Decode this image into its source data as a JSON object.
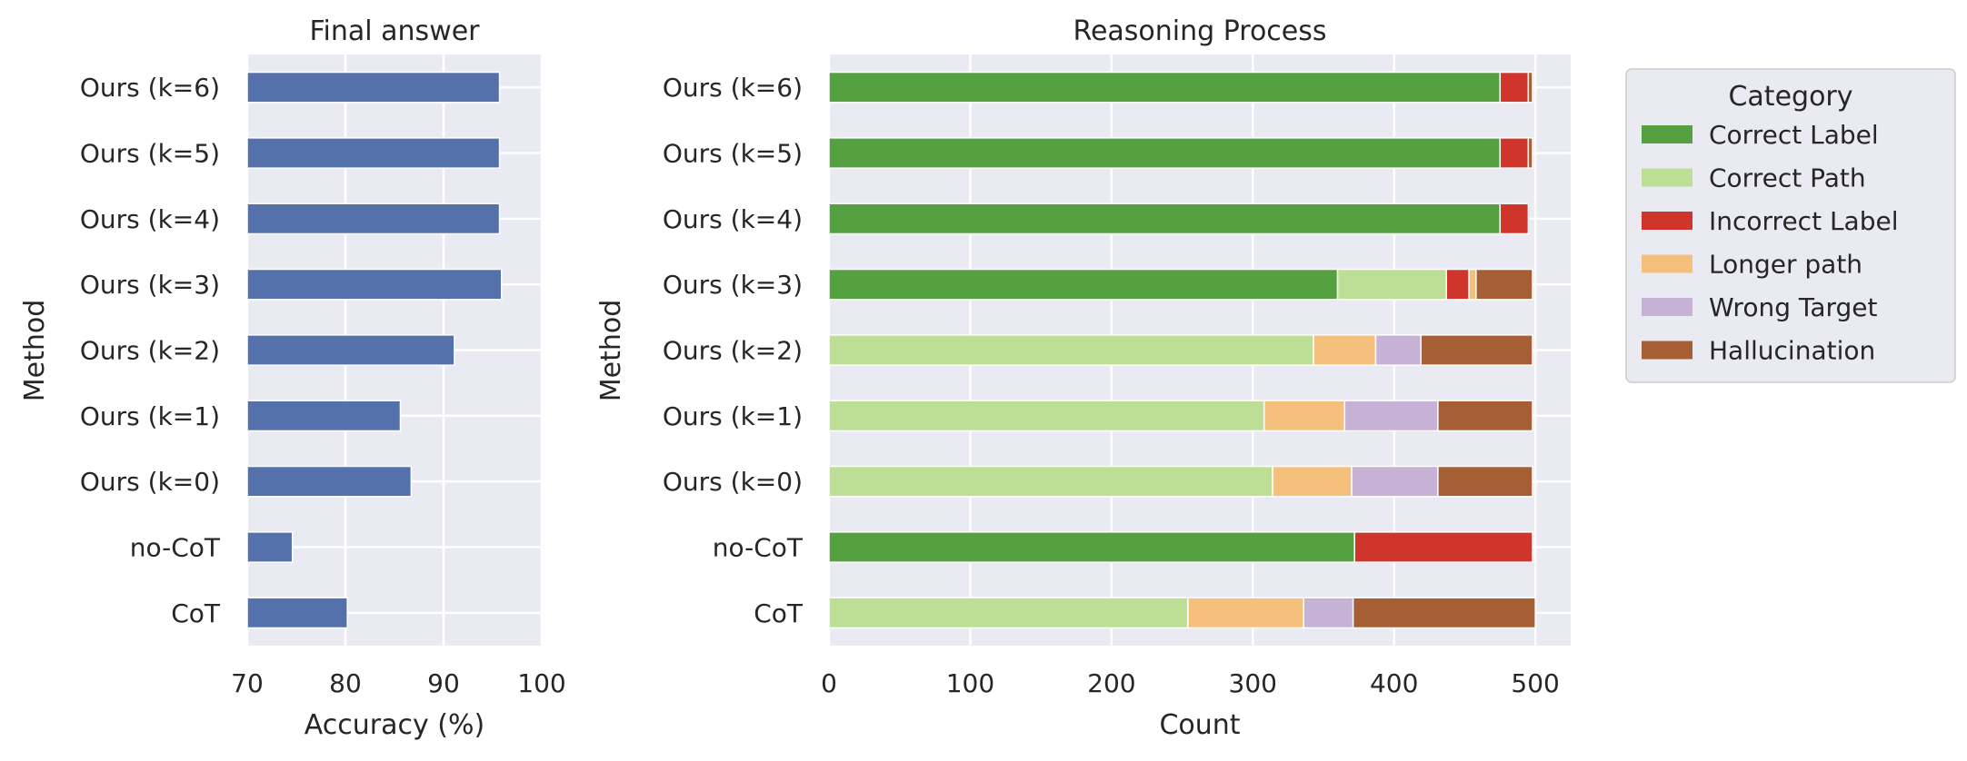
{
  "chart_data": [
    {
      "type": "bar",
      "orientation": "horizontal",
      "title": "Final answer",
      "xlabel": "Accuracy (%)",
      "ylabel": "Method",
      "xlim": [
        70,
        100
      ],
      "xticks": [
        70,
        80,
        90,
        100
      ],
      "grid": true,
      "categories": [
        "Ours (k=6)",
        "Ours (k=5)",
        "Ours (k=4)",
        "Ours (k=3)",
        "Ours (k=2)",
        "Ours (k=1)",
        "Ours (k=0)",
        "no-CoT",
        "CoT"
      ],
      "values": [
        95.7,
        95.7,
        95.7,
        95.9,
        91.1,
        85.6,
        86.7,
        74.6,
        80.2
      ],
      "color": "#5471ab"
    },
    {
      "type": "bar",
      "orientation": "horizontal",
      "stacked": true,
      "title": "Reasoning Process",
      "xlabel": "Count",
      "ylabel": "Method",
      "xlim": [
        0,
        525
      ],
      "xticks": [
        0,
        100,
        200,
        300,
        400,
        500
      ],
      "grid": true,
      "legend": {
        "title": "Category",
        "placement": "outside-right"
      },
      "categories": [
        "Ours (k=6)",
        "Ours (k=5)",
        "Ours (k=4)",
        "Ours (k=3)",
        "Ours (k=2)",
        "Ours (k=1)",
        "Ours (k=0)",
        "no-CoT",
        "CoT"
      ],
      "series": [
        {
          "name": "Correct Label",
          "color": "#55a040",
          "values": [
            475,
            475,
            475,
            360,
            0,
            0,
            0,
            372,
            0
          ]
        },
        {
          "name": "Correct Path",
          "color": "#bddf95",
          "values": [
            0,
            0,
            0,
            77,
            343,
            308,
            314,
            0,
            254
          ]
        },
        {
          "name": "Incorrect Label",
          "color": "#d0352b",
          "values": [
            20,
            20,
            20,
            16,
            0,
            0,
            0,
            126,
            0
          ]
        },
        {
          "name": "Longer path",
          "color": "#f4c07c",
          "values": [
            0,
            0,
            0,
            5,
            44,
            57,
            56,
            0,
            82
          ]
        },
        {
          "name": "Wrong Target",
          "color": "#c6b2d5",
          "values": [
            0,
            0,
            0,
            0,
            32,
            66,
            61,
            0,
            35
          ]
        },
        {
          "name": "Hallucination",
          "color": "#a65e34",
          "values": [
            3,
            3,
            0,
            40,
            79,
            67,
            67,
            0,
            129
          ]
        }
      ]
    }
  ]
}
